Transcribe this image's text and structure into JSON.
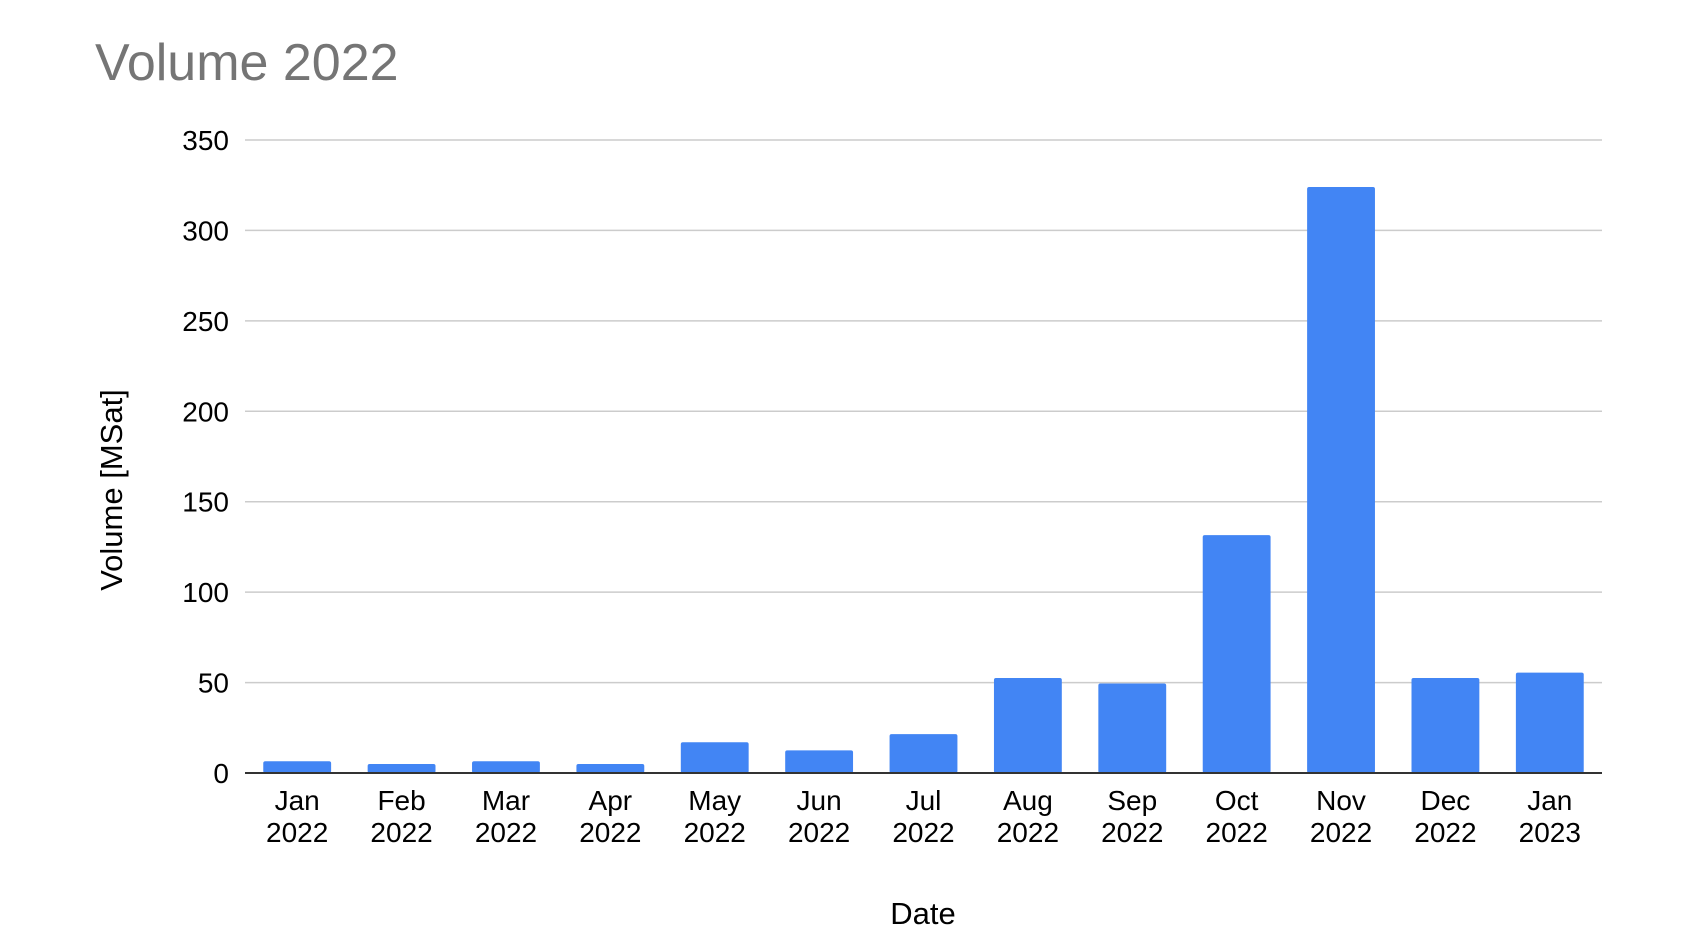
{
  "chart_data": {
    "type": "bar",
    "title": "Volume 2022",
    "xlabel": "Date",
    "ylabel": "Volume [MSat]",
    "categories": [
      [
        "Jan",
        "2022"
      ],
      [
        "Feb",
        "2022"
      ],
      [
        "Mar",
        "2022"
      ],
      [
        "Apr",
        "2022"
      ],
      [
        "May",
        "2022"
      ],
      [
        "Jun",
        "2022"
      ],
      [
        "Jul",
        "2022"
      ],
      [
        "Aug",
        "2022"
      ],
      [
        "Sep",
        "2022"
      ],
      [
        "Oct",
        "2022"
      ],
      [
        "Nov",
        "2022"
      ],
      [
        "Dec",
        "2022"
      ],
      [
        "Jan",
        "2023"
      ]
    ],
    "values": [
      6.5,
      5,
      6.5,
      5,
      17,
      12.5,
      21.5,
      52.5,
      49.5,
      131.5,
      324,
      52.5,
      55.5
    ],
    "ylim": [
      0,
      350
    ],
    "yticks": [
      0,
      50,
      100,
      150,
      200,
      250,
      300,
      350
    ],
    "grid": true,
    "legend": "none",
    "colors": {
      "bar": "#4285f4",
      "title": "#757575",
      "text": "#000000",
      "grid": "#cccccc",
      "axis": "#333333",
      "background": "#ffffff"
    }
  }
}
